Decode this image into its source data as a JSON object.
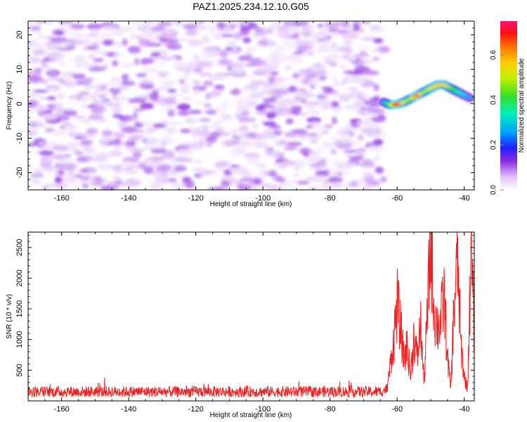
{
  "title": "PAZ1.2025.234.12.10.G05",
  "chart_data": [
    {
      "type": "heatmap",
      "title": "PAZ1.2025.234.12.10.G05",
      "xlabel": "Height of straight line (km)",
      "ylabel": "Frequency (Hz)",
      "xlim": [
        -170,
        -37
      ],
      "ylim": [
        -25,
        24
      ],
      "xticks": [
        -160,
        -140,
        -120,
        -100,
        -80,
        -60,
        -40
      ],
      "yticks": [
        -20,
        -10,
        0,
        10,
        20
      ],
      "colorbar": {
        "label": "Normalized spectral amplitude",
        "ticks": [
          0.0,
          0.2,
          0.4,
          0.6
        ],
        "tick_labels": [
          "0.0",
          "0.2",
          "0.4",
          "0.6"
        ],
        "range": [
          0,
          0.75
        ]
      },
      "noise_region": {
        "x_range": [
          -170,
          -64
        ],
        "y_range": [
          -25,
          24
        ],
        "amplitude_range": [
          0.02,
          0.12
        ]
      },
      "signal_track": {
        "x": [
          -64,
          -62,
          -60,
          -58,
          -56,
          -54,
          -52,
          -50,
          -48,
          -46,
          -44,
          -42,
          -40,
          -38
        ],
        "y": [
          0.5,
          -0.3,
          -0.2,
          0.5,
          1.5,
          2.5,
          3.5,
          4.5,
          5.5,
          5.5,
          4.5,
          3.5,
          2.5,
          1.5
        ],
        "amplitude": [
          0.25,
          0.45,
          0.72,
          0.5,
          0.45,
          0.65,
          0.45,
          0.5,
          0.55,
          0.55,
          0.45,
          0.35,
          0.3,
          0.25
        ]
      }
    },
    {
      "type": "line",
      "xlabel": "Height of straight line (km)",
      "ylabel": "SNR (10 * v/v)",
      "xlim": [
        -170,
        -37
      ],
      "ylim": [
        0,
        2750
      ],
      "xticks": [
        -160,
        -140,
        -120,
        -100,
        -80,
        -60,
        -40
      ],
      "yticks": [
        500,
        1000,
        1500,
        2000,
        2500
      ],
      "series": [
        {
          "name": "SNR",
          "color": "#ee2222",
          "x": [
            -170,
            -160,
            -150,
            -140,
            -130,
            -120,
            -110,
            -100,
            -90,
            -80,
            -70,
            -65,
            -63,
            -62,
            -61,
            -60,
            -59,
            -58,
            -57,
            -56,
            -55,
            -54,
            -53,
            -52,
            -51,
            -50,
            -49,
            -48,
            -47,
            -46,
            -45,
            -44,
            -43,
            -42,
            -41,
            -40,
            -39,
            -38,
            -37
          ],
          "y": [
            150,
            150,
            150,
            150,
            150,
            150,
            150,
            150,
            150,
            150,
            150,
            150,
            200,
            600,
            1000,
            1600,
            1200,
            700,
            900,
            400,
            1050,
            700,
            1250,
            300,
            1400,
            2700,
            1500,
            1200,
            1300,
            1700,
            700,
            200,
            1600,
            2300,
            900,
            400,
            200,
            2500,
            1100
          ]
        }
      ]
    }
  ]
}
